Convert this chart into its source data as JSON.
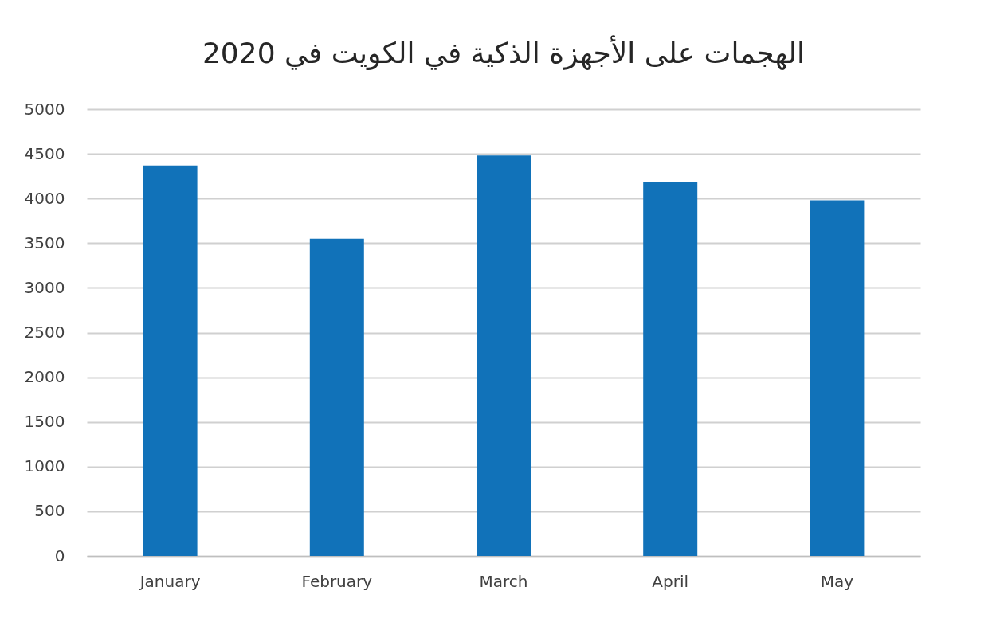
{
  "chart_data": {
    "type": "bar",
    "title": "الهجمات على الأجهزة الذكية في الكويت في 2020",
    "categories": [
      "January",
      "February",
      "March",
      "April",
      "May"
    ],
    "values": [
      4370,
      3550,
      4480,
      4180,
      3980
    ],
    "color": "#1172b9",
    "ylim": [
      0,
      5000
    ],
    "yticks": [
      0,
      500,
      1000,
      1500,
      2000,
      2500,
      3000,
      3500,
      4000,
      4500,
      5000
    ],
    "grid": "y"
  }
}
